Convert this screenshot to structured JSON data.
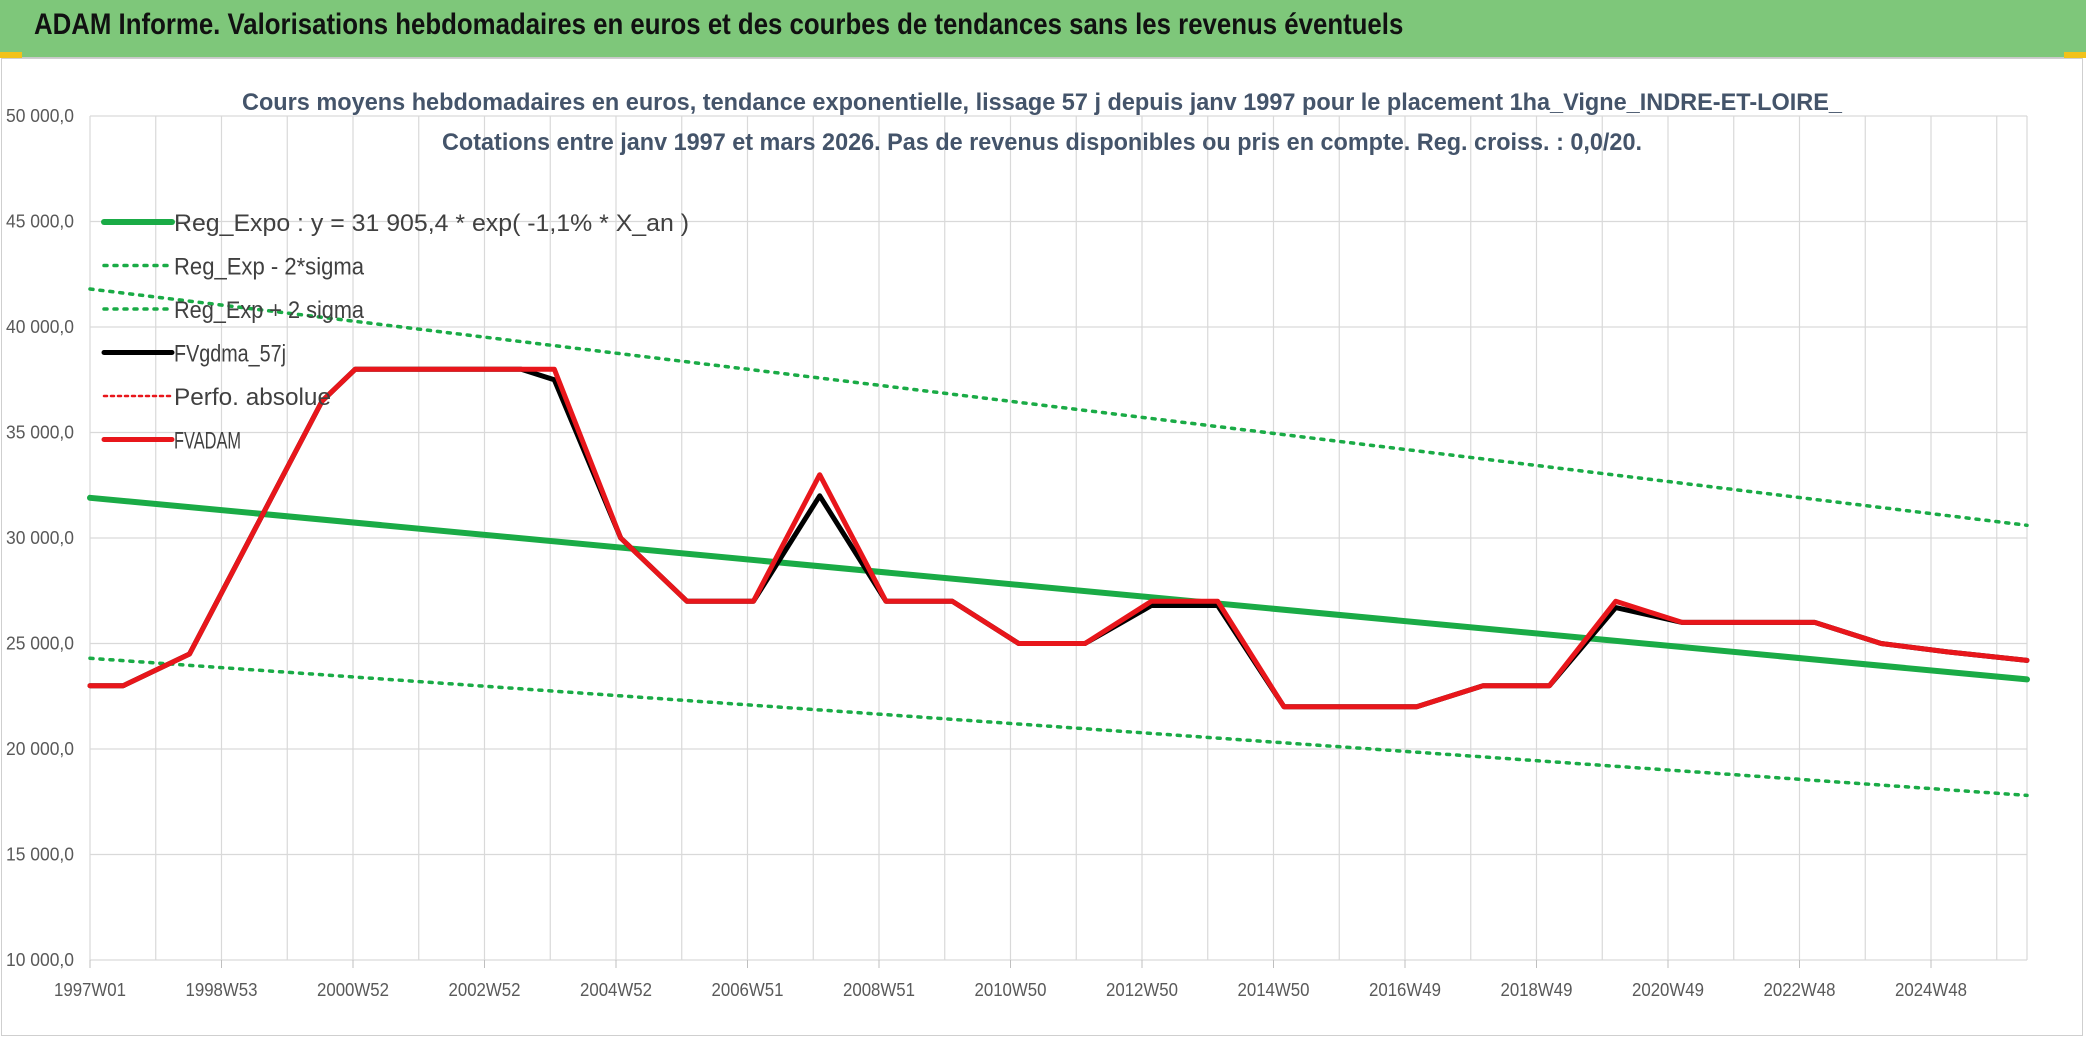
{
  "banner": {
    "title": "ADAM Informe. Valorisations hebdomadaires en euros et des courbes de tendances sans les revenus éventuels"
  },
  "colors": {
    "banner": "#7ec77a",
    "green": "#1aab46",
    "black": "#000000",
    "red": "#e8161b",
    "grid": "#d9d9d9"
  },
  "chart_data": {
    "type": "line",
    "title": "Cours moyens hebdomadaires en euros, tendance exponentielle, lissage 57 j depuis janv 1997 pour le placement 1ha_Vigne_INDRE-ET-LOIRE_",
    "subtitle": "Cotations entre janv 1997 et mars 2026. Pas de revenus disponibles ou pris en compte. Reg. croiss. : 0,0/20.",
    "ylim": [
      10000,
      50000
    ],
    "yticks": [
      "10 000,0",
      "15 000,0",
      "20 000,0",
      "25 000,0",
      "30 000,0",
      "35 000,0",
      "40 000,0",
      "45 000,0",
      "50 000,0"
    ],
    "xticks": [
      "1997W01",
      "1998W53",
      "2000W52",
      "2002W52",
      "2004W52",
      "2006W51",
      "2008W51",
      "2010W50",
      "2012W50",
      "2014W50",
      "2016W49",
      "2018W49",
      "2020W49",
      "2022W48",
      "2024W48"
    ],
    "xlim": [
      1997.0,
      2026.2
    ],
    "grid": true,
    "legend_position": "top-left",
    "legend": [
      {
        "label": "Reg_Expo : y = 31 905,4 * exp( -1,1% *  X_an )",
        "style": "green-solid"
      },
      {
        "label": "Reg_Exp - 2*sigma",
        "style": "green-dotted"
      },
      {
        "label": "Reg_Exp + 2 sigma",
        "style": "green-dotted"
      },
      {
        "label": "FVgdma_57j",
        "style": "black-solid"
      },
      {
        "label": "Perfo. absolue",
        "style": "red-dotted"
      },
      {
        "label": "FVADAM",
        "style": "red-solid"
      }
    ],
    "series": [
      {
        "name": "Reg_Expo : y = 31 905,4 * exp( -1,1% *  X_an )",
        "x": [
          1997.0,
          2026.2
        ],
        "y": [
          31905,
          23300
        ]
      },
      {
        "name": "Reg_Exp - 2*sigma",
        "x": [
          1997.0,
          2026.2
        ],
        "y": [
          24300,
          17800
        ]
      },
      {
        "name": "Reg_Exp + 2 sigma",
        "x": [
          1997.0,
          2026.2
        ],
        "y": [
          41800,
          30600
        ]
      },
      {
        "name": "FVgdma_57j",
        "x": [
          1997.0,
          1997.5,
          1998.5,
          2000.5,
          2001.0,
          2002.0,
          2003.0,
          2003.5,
          2004.0,
          2005.0,
          2006.0,
          2007.0,
          2008.0,
          2009.0,
          2010.0,
          2011.0,
          2012.0,
          2013.0,
          2014.0,
          2015.0,
          2016.0,
          2017.0,
          2018.0,
          2019.0,
          2020.0,
          2021.0,
          2022.0,
          2023.0,
          2024.0,
          2025.0,
          2026.2
        ],
        "y": [
          23000,
          23000,
          24500,
          36500,
          38000,
          38000,
          38000,
          38000,
          37500,
          30000,
          27000,
          27000,
          32000,
          27000,
          27000,
          25000,
          25000,
          26800,
          26800,
          22000,
          22000,
          22000,
          23000,
          23000,
          26700,
          26000,
          26000,
          26000,
          25000,
          24600,
          24200
        ]
      },
      {
        "name": "FVADAM",
        "x": [
          1997.0,
          1997.5,
          1998.5,
          2000.5,
          2001.0,
          2002.0,
          2003.0,
          2003.5,
          2004.0,
          2005.0,
          2006.0,
          2006.5,
          2007.0,
          2008.0,
          2009.0,
          2010.0,
          2011.0,
          2012.0,
          2013.0,
          2014.0,
          2015.0,
          2016.0,
          2017.0,
          2018.0,
          2019.0,
          2020.0,
          2021.0,
          2022.0,
          2023.0,
          2024.0,
          2025.0,
          2026.2
        ],
        "y": [
          23000,
          23000,
          24500,
          36500,
          38000,
          38000,
          38000,
          38000,
          38000,
          30000,
          27000,
          27000,
          27000,
          33000,
          27000,
          27000,
          25000,
          25000,
          27000,
          27000,
          22000,
          22000,
          22000,
          23000,
          23000,
          27000,
          26000,
          26000,
          26000,
          25000,
          24600,
          24200
        ]
      }
    ]
  }
}
